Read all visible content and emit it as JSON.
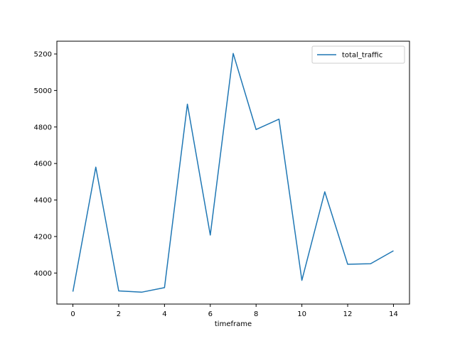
{
  "chart_data": {
    "type": "line",
    "title": "",
    "xlabel": "timeframe",
    "ylabel": "",
    "xlim": [
      -0.7,
      14.7
    ],
    "ylim": [
      3830,
      5270
    ],
    "xticks": [
      0,
      2,
      4,
      6,
      8,
      10,
      12,
      14
    ],
    "yticks": [
      4000,
      4200,
      4400,
      4600,
      4800,
      5000,
      5200
    ],
    "grid": false,
    "legend": "top-right",
    "series": [
      {
        "name": "total_traffic",
        "color": "#1f77b4",
        "x": [
          0,
          1,
          2,
          3,
          4,
          5,
          6,
          7,
          8,
          9,
          10,
          11,
          12,
          13,
          14
        ],
        "values": [
          3898,
          4580,
          3902,
          3895,
          3920,
          4925,
          4208,
          5203,
          4786,
          4843,
          3960,
          4445,
          4048,
          4051,
          4122
        ]
      }
    ]
  }
}
